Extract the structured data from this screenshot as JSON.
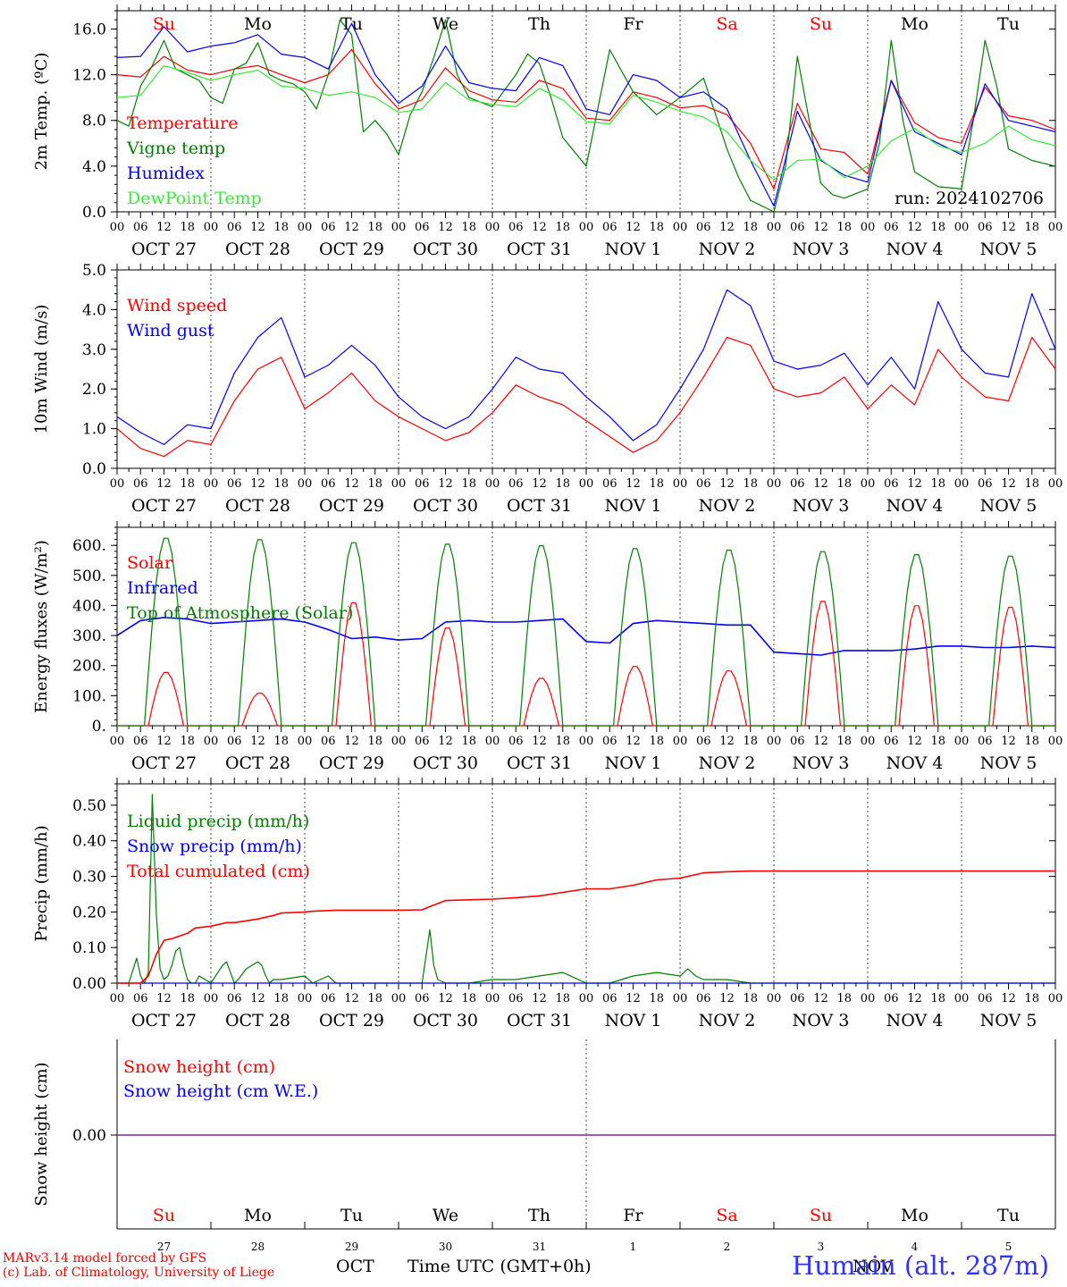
{
  "meta": {
    "run": "run: 2024102706",
    "model_line": "MARv3.14 model forced by GFS",
    "credit_line": "(c) Lab. of Climatology, University of Liege",
    "location": "Humain (alt. 287m)",
    "month_oct": "OCT",
    "month_nov": "NOV",
    "time_label": "Time UTC (GMT+0h)"
  },
  "colors": {
    "red": "#ff0000",
    "green": "#008000",
    "blue": "#0000ff",
    "light_green": "#33ee33",
    "purple": "#7a2a8a",
    "grid": "#555555"
  },
  "axis": {
    "day_names": [
      "Su",
      "Mo",
      "Tu",
      "We",
      "Th",
      "Fr",
      "Sa",
      "Su",
      "Mo",
      "Tu"
    ],
    "day_name_colors": [
      "red",
      "black",
      "black",
      "black",
      "black",
      "black",
      "red",
      "red",
      "black",
      "black"
    ],
    "date_labels": [
      "OCT 27",
      "OCT 28",
      "OCT 29",
      "OCT 30",
      "OCT 31",
      "NOV  1",
      "NOV  2",
      "NOV  3",
      "NOV  4",
      "NOV  5"
    ],
    "hour_ticks": [
      "00",
      "06",
      "12",
      "18"
    ],
    "final_tick": "00",
    "day_numbers": [
      "27",
      "28",
      "29",
      "30",
      "31",
      "1",
      "2",
      "3",
      "4",
      "5"
    ]
  },
  "chart_data": [
    {
      "type": "line",
      "ylabel": "2m Temp. (ºC)",
      "ylim": [
        0,
        17.6
      ],
      "yticks": [
        "0.0",
        "4.0",
        "8.0",
        "12.0",
        "16.0"
      ],
      "x_unit": "hours since 2024-10-27 00 UTC",
      "legend": [
        "Temperature",
        "Vigne temp",
        "Humidex",
        "DewPoint Temp"
      ],
      "series": [
        {
          "name": "Temperature",
          "color": "red",
          "x": [
            0,
            6,
            12,
            18,
            24,
            30,
            36,
            42,
            48,
            54,
            60,
            66,
            72,
            78,
            84,
            90,
            96,
            102,
            108,
            114,
            120,
            126,
            132,
            138,
            144,
            150,
            156,
            162,
            168,
            174,
            180,
            186,
            192,
            198,
            204,
            210,
            216,
            222,
            228,
            234,
            240
          ],
          "y": [
            12.0,
            11.8,
            13.6,
            12.4,
            12.0,
            12.5,
            12.8,
            12.0,
            11.3,
            12.0,
            14.2,
            11.2,
            9.0,
            9.8,
            12.6,
            10.6,
            9.8,
            9.6,
            11.5,
            10.8,
            8.2,
            8.0,
            10.5,
            10.0,
            9.1,
            9.3,
            8.5,
            6.0,
            2.0,
            9.5,
            5.5,
            5.2,
            3.3,
            11.5,
            7.8,
            6.5,
            6.0,
            10.9,
            8.4,
            8.0,
            7.2
          ]
        },
        {
          "name": "Vigne temp",
          "color": "green",
          "x": [
            0,
            3,
            6,
            9,
            12,
            15,
            18,
            21,
            24,
            27,
            30,
            33,
            36,
            39,
            42,
            45,
            48,
            51,
            54,
            57,
            60,
            63,
            66,
            69,
            72,
            75,
            78,
            81,
            84,
            87,
            90,
            96,
            102,
            105,
            108,
            111,
            114,
            120,
            126,
            132,
            135,
            138,
            144,
            150,
            156,
            159,
            162,
            168,
            171,
            174,
            180,
            183,
            186,
            192,
            195,
            198,
            201,
            204,
            210,
            216,
            219,
            222,
            225,
            228,
            234,
            240
          ],
          "y": [
            8.0,
            7.5,
            11.0,
            12.8,
            15.0,
            12.5,
            12.0,
            11.5,
            10.0,
            9.5,
            12.5,
            13.0,
            14.8,
            12.0,
            11.5,
            11.2,
            10.5,
            9.0,
            12.0,
            16.8,
            15.5,
            7.0,
            8.0,
            6.8,
            5.0,
            8.5,
            10.5,
            13.5,
            16.8,
            12.0,
            10.0,
            9.2,
            12.0,
            13.8,
            13.0,
            10.0,
            6.5,
            4.0,
            14.2,
            10.5,
            9.5,
            8.5,
            10.0,
            11.7,
            5.5,
            3.0,
            1.0,
            0.0,
            4.0,
            13.6,
            2.5,
            1.5,
            1.2,
            2.0,
            6.0,
            15.0,
            8.0,
            3.5,
            2.2,
            2.0,
            8.0,
            15.0,
            11.0,
            5.5,
            4.5,
            4.0
          ]
        },
        {
          "name": "Humidex",
          "color": "blue",
          "x": [
            0,
            6,
            12,
            18,
            24,
            30,
            36,
            42,
            48,
            54,
            60,
            66,
            72,
            78,
            84,
            90,
            96,
            102,
            108,
            114,
            120,
            126,
            132,
            138,
            144,
            150,
            156,
            162,
            168,
            174,
            180,
            186,
            192,
            198,
            204,
            210,
            216,
            222,
            228,
            234,
            240
          ],
          "y": [
            13.5,
            13.6,
            16.2,
            14.0,
            14.5,
            14.8,
            15.5,
            13.8,
            13.5,
            12.5,
            16.5,
            12.0,
            9.5,
            11.0,
            14.5,
            11.3,
            10.8,
            10.6,
            13.5,
            12.8,
            9.0,
            8.5,
            12.0,
            11.5,
            10.0,
            10.5,
            9.0,
            4.5,
            0.5,
            8.8,
            4.5,
            3.2,
            2.6,
            11.5,
            7.0,
            6.0,
            5.0,
            11.2,
            8.0,
            7.5,
            7.0
          ]
        },
        {
          "name": "DewPoint Temp",
          "color": "light_green",
          "x": [
            0,
            6,
            12,
            18,
            24,
            30,
            36,
            42,
            48,
            54,
            60,
            66,
            72,
            78,
            84,
            90,
            96,
            102,
            108,
            114,
            120,
            126,
            132,
            138,
            144,
            150,
            156,
            162,
            168,
            174,
            180,
            186,
            192,
            198,
            204,
            210,
            216,
            222,
            228,
            234,
            240
          ],
          "y": [
            10.0,
            10.2,
            12.8,
            12.2,
            11.5,
            12.0,
            12.4,
            11.0,
            10.8,
            10.2,
            10.5,
            10.0,
            8.7,
            9.0,
            11.3,
            9.8,
            9.4,
            9.2,
            10.8,
            9.8,
            7.9,
            7.7,
            10.2,
            9.6,
            8.8,
            8.3,
            7.0,
            4.5,
            2.8,
            4.5,
            4.6,
            3.0,
            4.0,
            6.2,
            7.3,
            5.8,
            5.2,
            6.0,
            7.5,
            6.3,
            5.8
          ]
        }
      ]
    },
    {
      "type": "line",
      "ylabel": "10m Wind (m/s)",
      "ylim": [
        0,
        5.0
      ],
      "yticks": [
        "0.0",
        "1.0",
        "2.0",
        "3.0",
        "4.0",
        "5.0"
      ],
      "x_unit": "hours since 2024-10-27 00 UTC",
      "legend": [
        "Wind speed",
        "Wind gust"
      ],
      "series": [
        {
          "name": "Wind speed",
          "color": "red",
          "x": [
            0,
            6,
            12,
            18,
            24,
            30,
            36,
            42,
            48,
            54,
            60,
            66,
            72,
            78,
            84,
            90,
            96,
            102,
            108,
            114,
            120,
            126,
            132,
            138,
            144,
            150,
            156,
            162,
            168,
            174,
            180,
            186,
            192,
            198,
            204,
            210,
            216,
            222,
            228,
            234,
            240
          ],
          "y": [
            1.0,
            0.5,
            0.3,
            0.7,
            0.6,
            1.7,
            2.5,
            2.8,
            1.5,
            1.9,
            2.4,
            1.7,
            1.3,
            1.0,
            0.7,
            0.9,
            1.4,
            2.1,
            1.8,
            1.6,
            1.2,
            0.8,
            0.4,
            0.7,
            1.4,
            2.3,
            3.3,
            3.1,
            2.0,
            1.8,
            1.9,
            2.3,
            1.5,
            2.1,
            1.6,
            3.0,
            2.3,
            1.8,
            1.7,
            3.3,
            2.5
          ]
        },
        {
          "name": "Wind gust",
          "color": "blue",
          "x": [
            0,
            6,
            12,
            18,
            24,
            30,
            36,
            42,
            48,
            54,
            60,
            66,
            72,
            78,
            84,
            90,
            96,
            102,
            108,
            114,
            120,
            126,
            132,
            138,
            144,
            150,
            156,
            162,
            168,
            174,
            180,
            186,
            192,
            198,
            204,
            210,
            216,
            222,
            228,
            234,
            240
          ],
          "y": [
            1.3,
            0.9,
            0.6,
            1.1,
            1.0,
            2.4,
            3.3,
            3.8,
            2.3,
            2.6,
            3.1,
            2.6,
            1.8,
            1.3,
            1.0,
            1.3,
            2.0,
            2.8,
            2.5,
            2.4,
            1.8,
            1.3,
            0.7,
            1.1,
            2.0,
            3.0,
            4.5,
            4.1,
            2.7,
            2.5,
            2.6,
            2.9,
            2.1,
            2.8,
            2.0,
            4.2,
            3.0,
            2.4,
            2.3,
            4.4,
            3.0
          ]
        }
      ]
    },
    {
      "type": "line",
      "ylabel": "Energy fluxes (W/m²)",
      "ylim": [
        0,
        660
      ],
      "yticks": [
        "0.",
        "100.",
        "200.",
        "300.",
        "400.",
        "500.",
        "600."
      ],
      "x_unit": "hours since 2024-10-27 00 UTC",
      "legend": [
        "Solar",
        "Infrared",
        "Top of Atmosphere (Solar)"
      ],
      "series": [
        {
          "name": "Solar",
          "color": "red",
          "daily_peak": [
            180,
            110,
            415,
            330,
            160,
            200,
            185,
            420,
            405,
            400
          ]
        },
        {
          "name": "Infrared",
          "color": "blue",
          "x": [
            0,
            6,
            12,
            18,
            24,
            30,
            36,
            42,
            48,
            54,
            60,
            66,
            72,
            78,
            84,
            90,
            96,
            102,
            108,
            114,
            120,
            126,
            132,
            138,
            144,
            150,
            156,
            162,
            168,
            174,
            180,
            186,
            192,
            198,
            204,
            210,
            216,
            222,
            228,
            234,
            240
          ],
          "y": [
            300,
            350,
            360,
            355,
            340,
            345,
            350,
            355,
            345,
            320,
            290,
            295,
            285,
            290,
            345,
            350,
            345,
            345,
            350,
            355,
            280,
            275,
            340,
            350,
            345,
            340,
            335,
            335,
            245,
            240,
            235,
            250,
            250,
            250,
            255,
            265,
            265,
            260,
            260,
            265,
            260
          ]
        },
        {
          "name": "Top of Atmosphere (Solar)",
          "color": "green",
          "daily_peak": [
            630,
            625,
            615,
            610,
            605,
            595,
            590,
            585,
            575,
            570
          ]
        }
      ]
    },
    {
      "type": "line",
      "ylabel": "Precip (mm/h)",
      "ylim": [
        0,
        0.56
      ],
      "yticks": [
        "0.00",
        "0.10",
        "0.20",
        "0.30",
        "0.40",
        "0.50"
      ],
      "x_unit": "hours since 2024-10-27 00 UTC",
      "legend": [
        "Liquid precip (mm/h)",
        "Snow precip (mm/h)",
        "Total cumulated (cm)"
      ],
      "series": [
        {
          "name": "Liquid precip (mm/h)",
          "color": "green",
          "x": [
            0,
            3,
            5,
            6,
            7,
            8,
            9,
            10,
            11,
            12,
            13,
            14,
            15,
            16,
            17,
            18,
            19,
            20,
            21,
            24,
            27,
            28,
            29,
            30,
            31,
            33,
            36,
            37,
            38,
            39,
            40,
            42,
            48,
            50,
            54,
            56,
            60,
            66,
            72,
            78,
            80,
            81,
            82,
            84,
            90,
            96,
            102,
            108,
            114,
            120,
            126,
            132,
            138,
            144,
            146,
            147,
            148,
            150,
            156,
            162,
            168,
            180,
            192,
            204,
            216,
            228,
            240
          ],
          "y": [
            0,
            0,
            0.07,
            0.02,
            0,
            0.03,
            0.53,
            0.2,
            0.04,
            0.01,
            0.02,
            0.05,
            0.09,
            0.1,
            0.05,
            0.01,
            0,
            0,
            0.02,
            0,
            0.05,
            0.06,
            0.03,
            0,
            0.01,
            0.04,
            0.06,
            0.05,
            0.02,
            0,
            0.01,
            0.01,
            0.02,
            0,
            0.02,
            0,
            0,
            0,
            0,
            0,
            0.15,
            0.05,
            0.01,
            0,
            0,
            0.01,
            0.01,
            0.02,
            0.03,
            0,
            0,
            0.02,
            0.03,
            0.02,
            0.04,
            0.03,
            0.02,
            0.01,
            0.01,
            0,
            0,
            0,
            0,
            0,
            0,
            0,
            0
          ]
        },
        {
          "name": "Snow precip (mm/h)",
          "color": "blue",
          "x": [
            0,
            240
          ],
          "y": [
            0,
            0
          ]
        },
        {
          "name": "Total cumulated (cm)",
          "color": "red",
          "x": [
            0,
            6,
            8,
            10,
            12,
            14,
            18,
            20,
            24,
            28,
            30,
            36,
            40,
            42,
            48,
            50,
            56,
            60,
            72,
            78,
            80,
            84,
            96,
            102,
            108,
            114,
            120,
            126,
            132,
            138,
            144,
            150,
            156,
            162,
            168,
            180,
            240
          ],
          "y": [
            0,
            0,
            0.02,
            0.08,
            0.12,
            0.125,
            0.14,
            0.155,
            0.16,
            0.17,
            0.17,
            0.18,
            0.19,
            0.197,
            0.2,
            0.202,
            0.205,
            0.205,
            0.205,
            0.206,
            0.215,
            0.232,
            0.236,
            0.24,
            0.245,
            0.255,
            0.265,
            0.265,
            0.275,
            0.29,
            0.295,
            0.31,
            0.313,
            0.315,
            0.315,
            0.315,
            0.315
          ]
        }
      ]
    },
    {
      "type": "line",
      "ylabel": "Snow height (cm)",
      "ytick": "0.00",
      "legend": [
        "Snow height (cm)",
        "Snow height (cm W.E.)"
      ],
      "series": [
        {
          "name": "Snow height (cm)",
          "color": "red",
          "x": [
            0,
            240
          ],
          "y": [
            0,
            0
          ]
        },
        {
          "name": "Snow height (cm W.E.)",
          "color": "blue",
          "x": [
            0,
            240
          ],
          "y": [
            0,
            0
          ]
        }
      ]
    }
  ]
}
